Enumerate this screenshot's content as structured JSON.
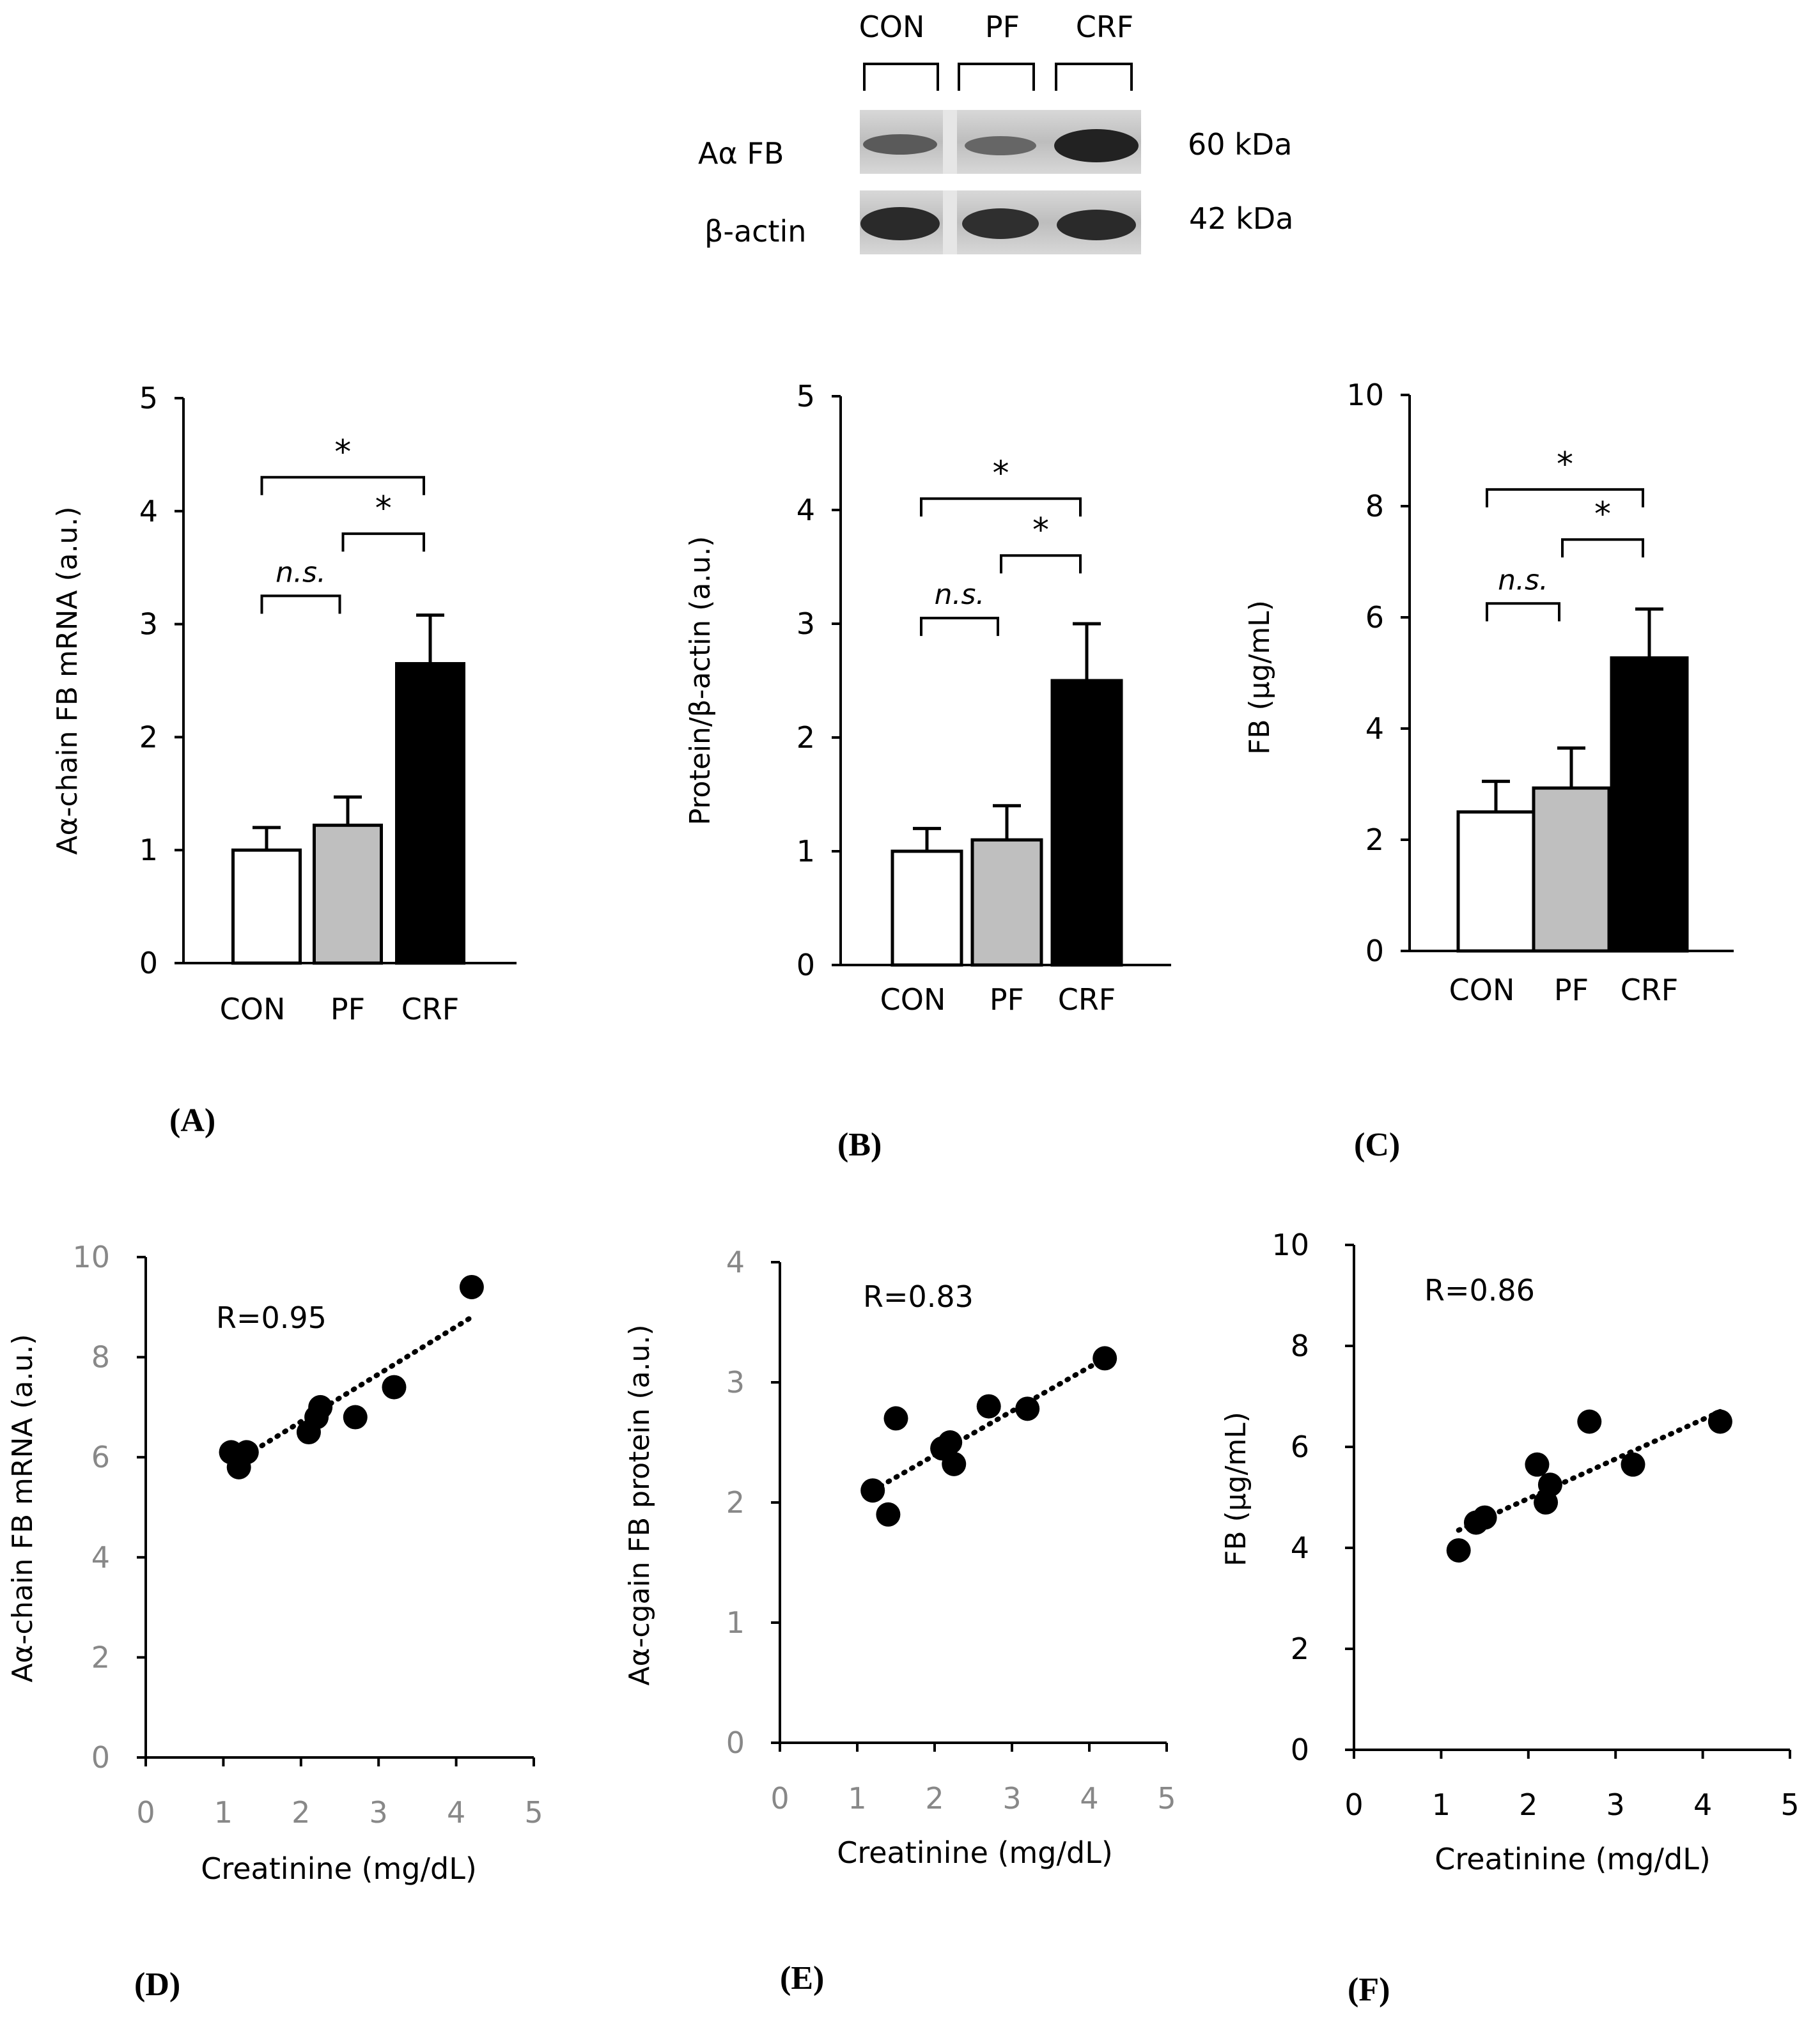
{
  "western_blot": {
    "lanes": [
      "CON",
      "PF",
      "CRF"
    ],
    "rows": [
      {
        "label": "Aα FB",
        "size": "60 kDa"
      },
      {
        "label": "β-actin",
        "size": "42 kDa"
      }
    ]
  },
  "chart_data": [
    {
      "panel": "(A)",
      "type": "bar",
      "categories": [
        "CON",
        "PF",
        "CRF"
      ],
      "values": [
        1.0,
        1.22,
        2.65
      ],
      "errors": [
        0.2,
        0.25,
        0.43
      ],
      "bar_colors": [
        "#ffffff",
        "#bfbfbf",
        "#000000"
      ],
      "ylabel": "Aα-chain FB mRNA (a.u.)",
      "ylim": [
        0,
        5
      ],
      "yticks": [
        "0",
        "1",
        "2",
        "3",
        "4",
        "5"
      ],
      "annotations": [
        {
          "label": "n.s.",
          "from": 0,
          "to": 1,
          "level": 3.25
        },
        {
          "label": "*",
          "from": 1,
          "to": 2,
          "level": 3.8
        },
        {
          "label": "*",
          "from": 0,
          "to": 2,
          "level": 4.3
        }
      ]
    },
    {
      "panel": "(B)",
      "type": "bar",
      "categories": [
        "CON",
        "PF",
        "CRF"
      ],
      "values": [
        1.0,
        1.1,
        2.5
      ],
      "errors": [
        0.2,
        0.3,
        0.5
      ],
      "bar_colors": [
        "#ffffff",
        "#bfbfbf",
        "#000000"
      ],
      "ylabel": "Protein/β-actin (a.u.)",
      "ylim": [
        0,
        5
      ],
      "yticks": [
        "0",
        "1",
        "2",
        "3",
        "4",
        "5"
      ],
      "annotations": [
        {
          "label": "n.s.",
          "from": 0,
          "to": 1,
          "level": 3.05
        },
        {
          "label": "*",
          "from": 1,
          "to": 2,
          "level": 3.6
        },
        {
          "label": "*",
          "from": 0,
          "to": 2,
          "level": 4.1
        }
      ]
    },
    {
      "panel": "(C)",
      "type": "bar",
      "categories": [
        "CON",
        "PF",
        "CRF"
      ],
      "values": [
        2.5,
        2.93,
        5.27
      ],
      "errors": [
        0.55,
        0.72,
        0.88
      ],
      "bar_colors": [
        "#ffffff",
        "#bfbfbf",
        "#000000"
      ],
      "ylabel": "FB (µg/mL)",
      "ylim": [
        0,
        10
      ],
      "yticks": [
        "0",
        "2",
        "4",
        "6",
        "8",
        "10"
      ],
      "annotations": [
        {
          "label": "n.s.",
          "from": 0,
          "to": 1,
          "level": 6.25
        },
        {
          "label": "*",
          "from": 1,
          "to": 2,
          "level": 7.4
        },
        {
          "label": "*",
          "from": 0,
          "to": 2,
          "level": 8.3
        }
      ]
    },
    {
      "panel": "(D)",
      "type": "scatter",
      "x": [
        1.1,
        1.2,
        1.3,
        2.1,
        2.2,
        2.25,
        2.7,
        3.2,
        4.2
      ],
      "y": [
        6.1,
        5.8,
        6.1,
        6.5,
        6.8,
        7.0,
        6.8,
        7.4,
        9.4
      ],
      "trendline": [
        [
          1.2,
          5.95
        ],
        [
          4.2,
          8.8
        ]
      ],
      "r_label": "R=0.95",
      "xlabel": "Creatinine (mg/dL)",
      "ylabel": "Aα-chain FB mRNA (a.u.)",
      "xlim": [
        0,
        5
      ],
      "ylim": [
        0,
        10
      ],
      "xticks": [
        "0",
        "1",
        "2",
        "3",
        "4",
        "5"
      ],
      "yticks": [
        "0",
        "2",
        "4",
        "6",
        "8",
        "10"
      ]
    },
    {
      "panel": "(E)",
      "type": "scatter",
      "x": [
        1.2,
        1.4,
        1.5,
        2.1,
        2.2,
        2.25,
        2.7,
        3.2,
        4.2
      ],
      "y": [
        2.1,
        1.9,
        2.7,
        2.45,
        2.5,
        2.32,
        2.8,
        2.78,
        3.2
      ],
      "trendline": [
        [
          1.2,
          2.1
        ],
        [
          4.2,
          3.2
        ]
      ],
      "r_label": "R=0.83",
      "xlabel": "Creatinine (mg/dL)",
      "ylabel": "Aα-cgain FB  protein (a.u.)",
      "xlim": [
        0,
        5
      ],
      "ylim": [
        0,
        4
      ],
      "xticks": [
        "0",
        "1",
        "2",
        "3",
        "4",
        "5"
      ],
      "yticks": [
        "0",
        "1",
        "2",
        "3",
        "4"
      ]
    },
    {
      "panel": "(F)",
      "type": "scatter",
      "x": [
        1.2,
        1.4,
        1.5,
        2.1,
        2.2,
        2.25,
        2.7,
        3.2,
        4.2
      ],
      "y": [
        3.95,
        4.5,
        4.6,
        5.65,
        4.9,
        5.25,
        6.5,
        5.65,
        6.5
      ],
      "trendline": [
        [
          1.2,
          4.35
        ],
        [
          4.2,
          6.7
        ]
      ],
      "r_label": "R=0.86",
      "xlabel": "Creatinine (mg/dL)",
      "ylabel": "FB  (µg/mL)",
      "xlim": [
        0,
        5
      ],
      "ylim": [
        0,
        10
      ],
      "xticks": [
        "0",
        "1",
        "2",
        "3",
        "4",
        "5"
      ],
      "yticks": [
        "0",
        "2",
        "4",
        "6",
        "8",
        "10"
      ]
    }
  ]
}
